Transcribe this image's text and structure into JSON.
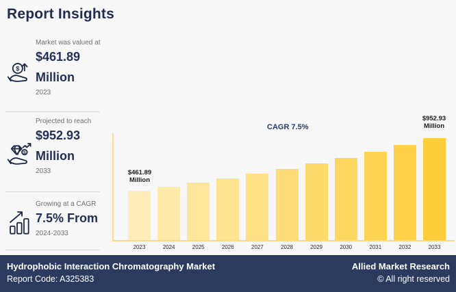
{
  "page": {
    "title": "Report Insights",
    "background": "#f7f7f8",
    "accent_navy": "#232f56"
  },
  "stats": [
    {
      "icon": "hand-coin-growth-icon",
      "caption": "Market was valued at",
      "value": "$461.89",
      "unit": "Million",
      "period": "2023"
    },
    {
      "icon": "hand-diamond-icon",
      "caption": "Projected to reach",
      "value": "$952.93",
      "unit": "Million",
      "period": "2033"
    },
    {
      "icon": "growth-bars-icon",
      "caption": "Growing at a CAGR",
      "value": "7.5% From",
      "unit": "",
      "period": "2024-2033"
    }
  ],
  "chart_data": {
    "type": "bar",
    "categories": [
      "2023",
      "2024",
      "2025",
      "2026",
      "2027",
      "2028",
      "2029",
      "2030",
      "2031",
      "2032",
      "2033"
    ],
    "values": [
      461.89,
      496.5,
      533.8,
      573.8,
      616.8,
      663.1,
      712.8,
      766.3,
      823.8,
      885.6,
      952.93
    ],
    "title": "",
    "xlabel": "",
    "ylabel": "",
    "ylim": [
      0,
      1000
    ],
    "grid": false,
    "legend": false,
    "bar_color_start": "#feedb6",
    "bar_color_end": "#fdcd3b",
    "axis_color": "#fbdc8c",
    "annotations": {
      "cagr_label": "CAGR 7.5%",
      "start_label": "$461.89\nMillion",
      "end_label": "$952.93\nMillion"
    }
  },
  "footer": {
    "market_name": "Hydrophobic Interaction Chromatography Market",
    "report_code": "Report Code: A325383",
    "brand": "Allied Market Research",
    "copyright": "© All right reserved",
    "background": "#2b3b5e"
  }
}
